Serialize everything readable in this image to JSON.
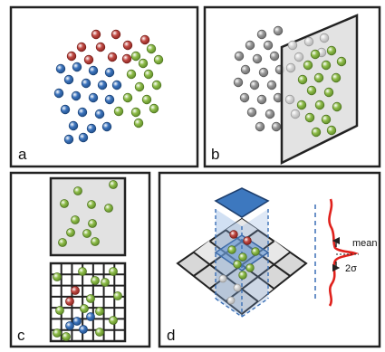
{
  "panels": {
    "a": {
      "label": "a"
    },
    "b": {
      "label": "b"
    },
    "c": {
      "label": "c"
    },
    "d": {
      "label": "d"
    }
  },
  "annotations": {
    "mean": "mean",
    "sigma": "2σ"
  },
  "colors": {
    "red": "#a8302b",
    "blue": "#2e62a8",
    "green": "#7aa83a",
    "gray": "#8a8a8a",
    "light_gray": "#c8c8c8",
    "panel_border": "#222222",
    "plane_fill": "#dcdcdc",
    "box_blue": "#3d78bf",
    "curve_red": "#e0211c",
    "dashed_blue": "#3a6fb5"
  }
}
